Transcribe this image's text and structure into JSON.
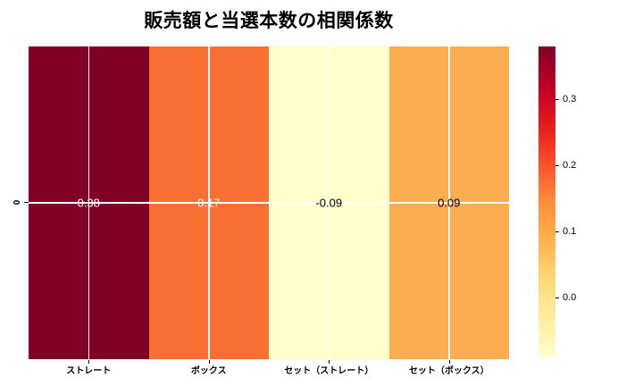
{
  "title": "販売額と当選本数の相関係数",
  "colors": {
    "background": "#ffffff",
    "grid_line": "#ffffff",
    "tick_color": "#000000",
    "text_color": "#000000"
  },
  "chart_data": {
    "type": "heatmap",
    "title": "販売額と当選本数の相関係数",
    "categories": [
      "ストレート",
      "ボックス",
      "セット（ストレート）",
      "セット（ボックス）"
    ],
    "row_labels": [
      "0"
    ],
    "values": [
      [
        0.38,
        0.17,
        -0.09,
        0.09
      ]
    ],
    "value_labels": [
      "0.38",
      "0.17",
      "-0.09",
      "0.09"
    ],
    "cell_colors": [
      "#800026",
      "#fa7034",
      "#ffffcb",
      "#fbad4f"
    ],
    "value_text_colors": [
      "#ffffff",
      "#ffffff",
      "#000000",
      "#000000"
    ],
    "colormap": "YlOrRd",
    "grid": true,
    "colorbar": {
      "position": "right",
      "vmin": -0.09,
      "vmax": 0.38,
      "tick_values": [
        0.3,
        0.2,
        0.1,
        0.0
      ],
      "ticks": [
        "0.3",
        "0.2",
        "0.1",
        "0.0"
      ],
      "gradient_stops_top_to_bottom": [
        "#800026",
        "#bd0026",
        "#e31a1c",
        "#fc4e2a",
        "#fd8d3c",
        "#feb24c",
        "#fed976",
        "#ffeda0",
        "#ffffcc"
      ]
    }
  }
}
